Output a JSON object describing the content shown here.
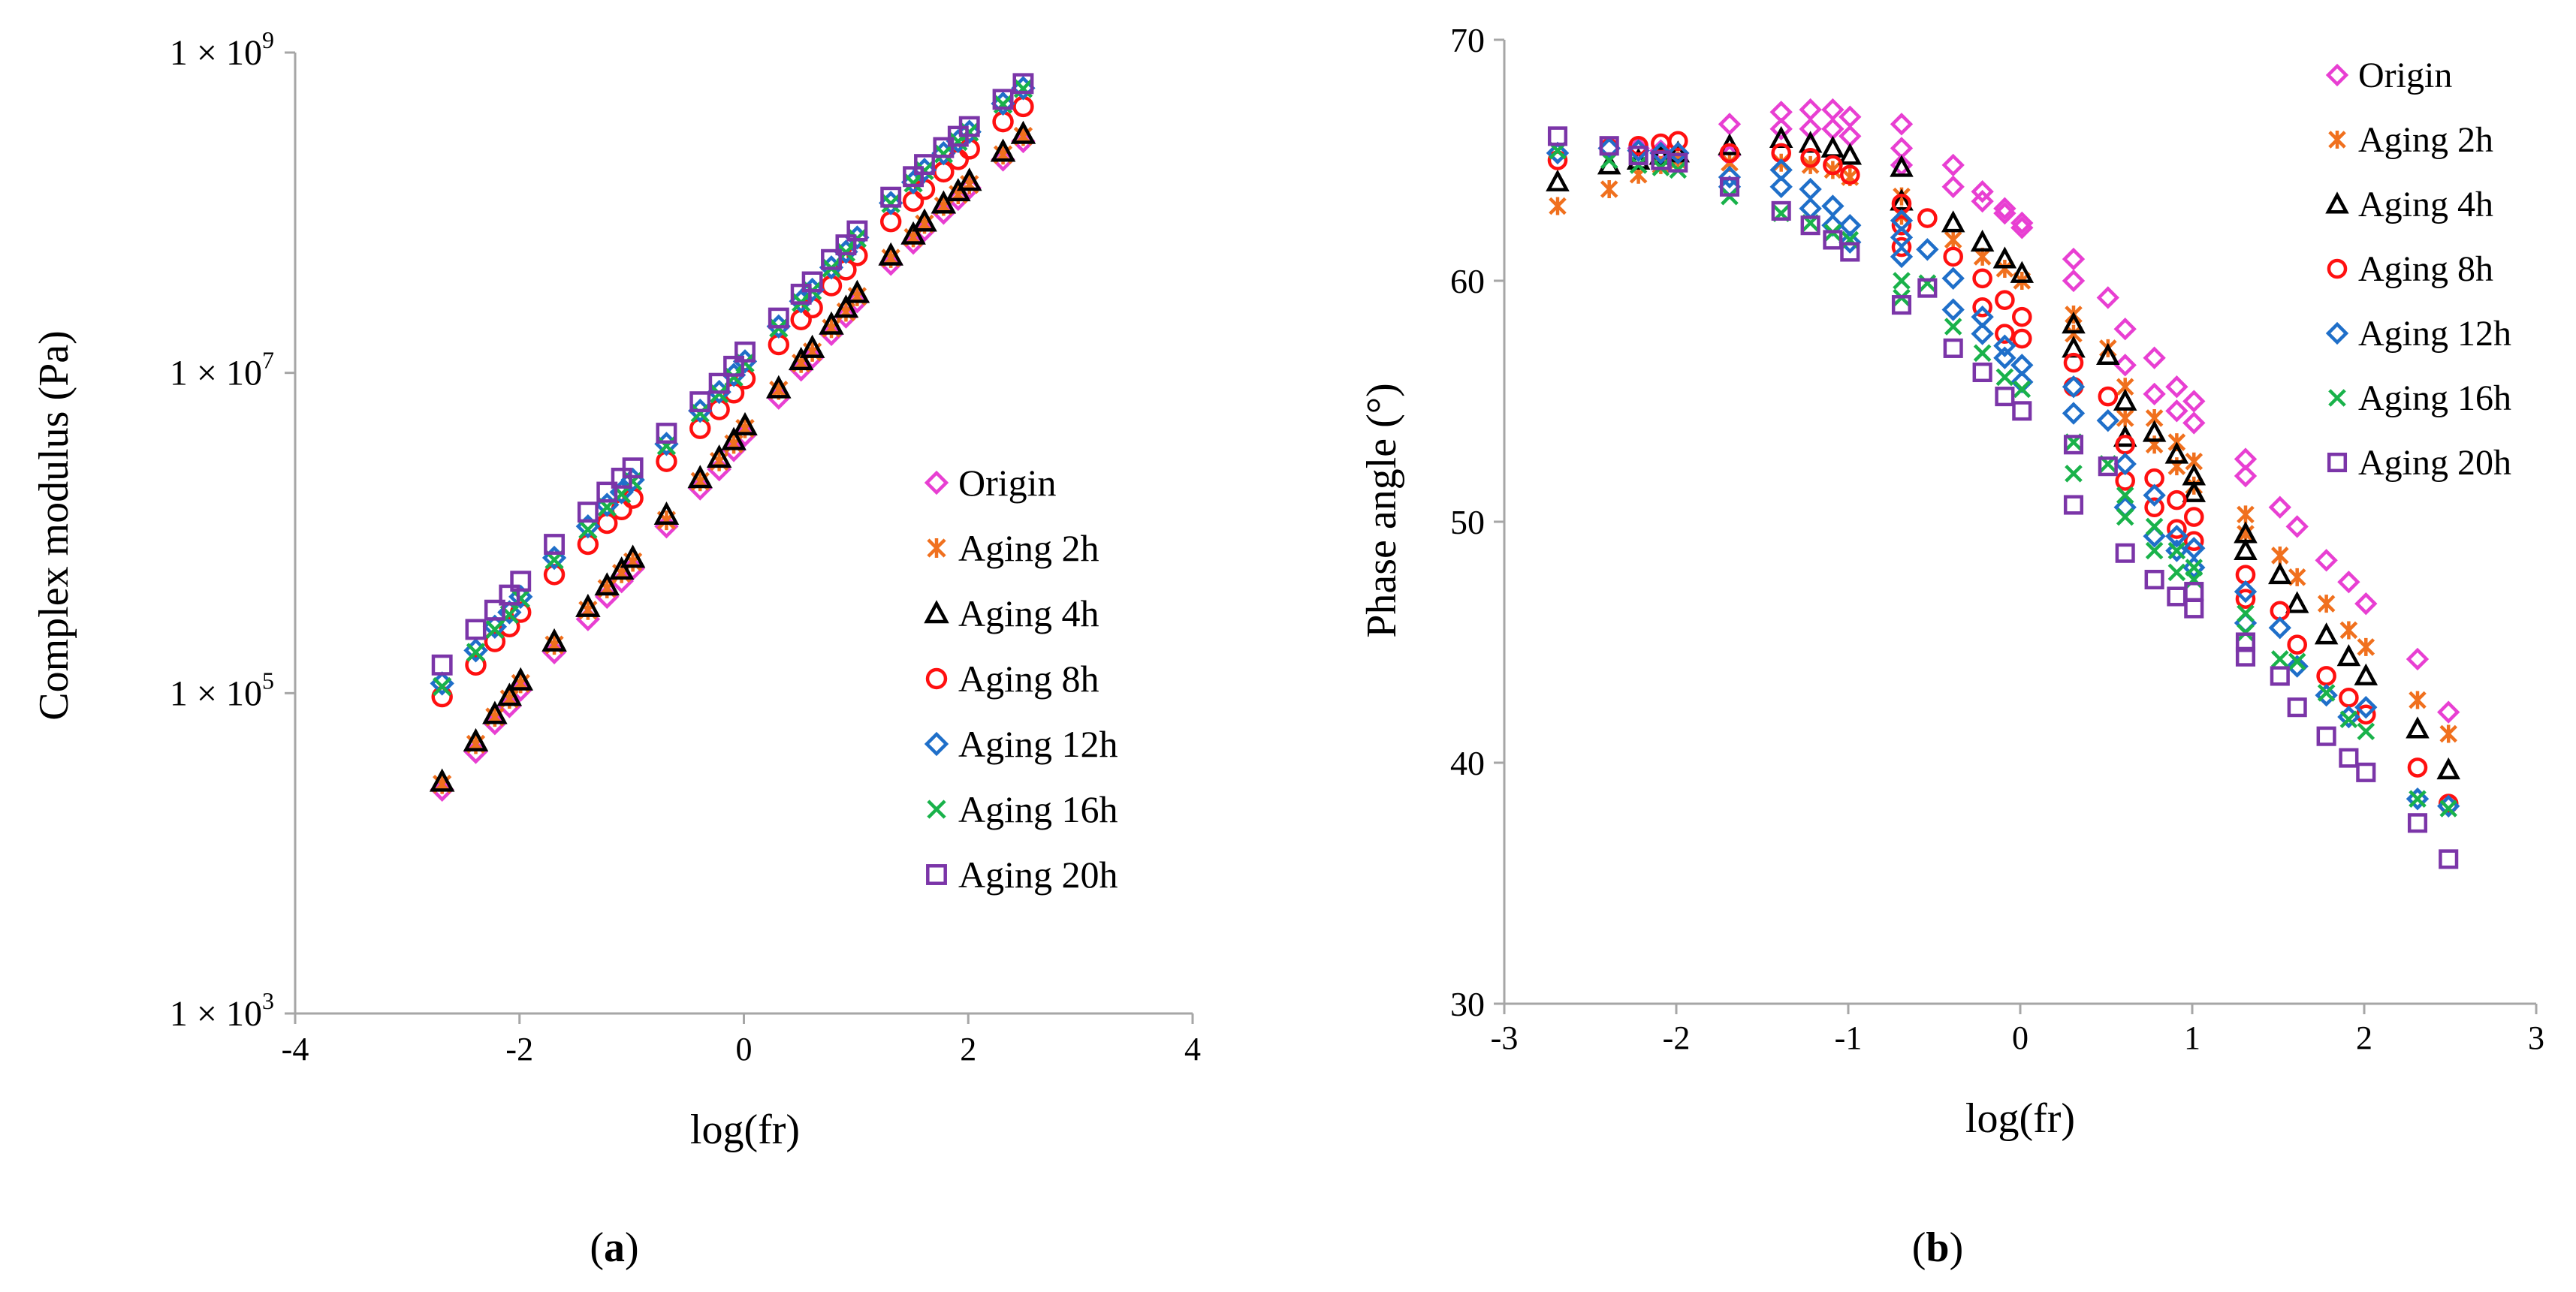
{
  "colors": {
    "Origin": "#e83fd2",
    "Aging 2h": "#f0701e",
    "Aging 4h": "#000000",
    "Aging 8h": "#ff1010",
    "Aging 12h": "#1f6fc9",
    "Aging 16h": "#19b24a",
    "Aging 20h": "#7b35a8"
  },
  "markers": {
    "Origin": "diamond",
    "Aging 2h": "asterisk",
    "Aging 4h": "triangle",
    "Aging 8h": "circle",
    "Aging 12h": "diamond",
    "Aging 16h": "x",
    "Aging 20h": "square"
  },
  "captions": {
    "a": "a",
    "b": "b"
  },
  "chart_data": [
    {
      "type": "scatter",
      "panel": "a",
      "xlabel": "log(fr)",
      "ylabel": "Complex modulus (Pa)",
      "yscale": "log",
      "xlim": [
        -4,
        4
      ],
      "xticks": [
        "-4",
        "-2",
        "0",
        "2",
        "4"
      ],
      "ylim": [
        1000,
        1000000000
      ],
      "yticks": [
        {
          "value": 1000,
          "mantissa": "1 × 10",
          "exp": "3"
        },
        {
          "value": 100000,
          "mantissa": "1 × 10",
          "exp": "5"
        },
        {
          "value": 10000000,
          "mantissa": "1 × 10",
          "exp": "7"
        },
        {
          "value": 1000000000,
          "mantissa": "1 × 10",
          "exp": "9"
        }
      ],
      "legend": [
        "Origin",
        "Aging 2h",
        "Aging 4h",
        "Aging 8h",
        "Aging 12h",
        "Aging 16h",
        "Aging 20h"
      ],
      "legend_position": "right",
      "x": [
        -2.69,
        -2.39,
        -2.22,
        -2.09,
        -1.99,
        -1.69,
        -1.39,
        -1.22,
        -1.09,
        -0.99,
        -0.69,
        -0.39,
        -0.22,
        -0.09,
        0.01,
        0.31,
        0.51,
        0.61,
        0.78,
        0.91,
        1.01,
        1.31,
        1.51,
        1.61,
        1.78,
        1.91,
        2.01,
        2.31,
        2.49
      ],
      "series": [
        {
          "name": "Origin",
          "values": [
            25000,
            43000,
            65000,
            83000,
            105000,
            180000,
            290000,
            400000,
            500000,
            600000,
            1100000,
            1900000,
            2500000,
            3300000,
            4100000,
            7000000,
            10500000,
            12500000,
            17500000,
            22500000,
            28000000,
            48000000,
            65000000,
            78000000,
            100000000,
            122000000,
            143000000,
            215000000,
            280000000
          ]
        },
        {
          "name": "Aging 2h",
          "values": [
            27000,
            48000,
            71000,
            92000,
            115000,
            200000,
            330000,
            450000,
            560000,
            660000,
            1200000,
            2100000,
            2800000,
            3600000,
            4500000,
            7800000,
            11500000,
            13500000,
            19000000,
            24000000,
            30000000,
            52000000,
            70000000,
            85000000,
            110000000,
            130000000,
            150000000,
            230000000,
            300000000
          ]
        },
        {
          "name": "Aging 4h",
          "values": [
            28000,
            50000,
            74000,
            96000,
            120000,
            210000,
            345000,
            470000,
            590000,
            700000,
            1300000,
            2200000,
            2950000,
            3800000,
            4700000,
            8000000,
            12000000,
            14300000,
            20000000,
            25500000,
            31500000,
            54000000,
            73000000,
            88000000,
            114000000,
            136000000,
            158000000,
            240000000,
            310000000
          ]
        },
        {
          "name": "Aging 8h",
          "values": [
            95000,
            150000,
            210000,
            260000,
            320000,
            550000,
            850000,
            1150000,
            1400000,
            1650000,
            2800000,
            4500000,
            5900000,
            7500000,
            9200000,
            15000000,
            21500000,
            25500000,
            35000000,
            44000000,
            54000000,
            88000000,
            118000000,
            140000000,
            180000000,
            215000000,
            250000000,
            370000000,
            460000000
          ]
        },
        {
          "name": "Aging 12h",
          "values": [
            115000,
            185000,
            260000,
            320000,
            400000,
            700000,
            1100000,
            1500000,
            1800000,
            2150000,
            3600000,
            5800000,
            7600000,
            9700000,
            11800000,
            19500000,
            28000000,
            33000000,
            45500000,
            57000000,
            70000000,
            115000000,
            155000000,
            185000000,
            235000000,
            280000000,
            320000000,
            480000000,
            600000000
          ]
        },
        {
          "name": "Aging 16h",
          "values": [
            110000,
            180000,
            250000,
            310000,
            390000,
            680000,
            1050000,
            1450000,
            1750000,
            2100000,
            3500000,
            5600000,
            7400000,
            9400000,
            11500000,
            19000000,
            27500000,
            32500000,
            45000000,
            56500000,
            69000000,
            114000000,
            153000000,
            183000000,
            233000000,
            278000000,
            318000000,
            475000000,
            595000000
          ]
        },
        {
          "name": "Aging 20h",
          "values": [
            150000,
            250000,
            330000,
            410000,
            500000,
            850000,
            1350000,
            1800000,
            2200000,
            2550000,
            4200000,
            6600000,
            8600000,
            11000000,
            13500000,
            22000000,
            31000000,
            37000000,
            51000000,
            63000000,
            77000000,
            125000000,
            168000000,
            200000000,
            255000000,
            300000000,
            345000000,
            510000000,
            640000000
          ]
        }
      ]
    },
    {
      "type": "scatter",
      "panel": "b",
      "xlabel": "log(fr)",
      "ylabel": "Phase angle (°)",
      "xlim": [
        -3,
        3
      ],
      "xticks": [
        "-3",
        "-2",
        "-1",
        "0",
        "1",
        "2",
        "3"
      ],
      "ylim": [
        30,
        70
      ],
      "yticks": [
        "30",
        "40",
        "50",
        "60",
        "70"
      ],
      "legend": [
        "Origin",
        "Aging 2h",
        "Aging 4h",
        "Aging 8h",
        "Aging 12h",
        "Aging 16h",
        "Aging 20h"
      ],
      "legend_position": "top-right",
      "series": [
        {
          "name": "Origin",
          "x": [
            -2.69,
            -2.39,
            -2.22,
            -2.09,
            -1.99,
            -1.69,
            -1.69,
            -1.39,
            -1.39,
            -1.22,
            -1.22,
            -1.09,
            -1.09,
            -0.99,
            -0.99,
            -0.69,
            -0.69,
            -0.69,
            -0.39,
            -0.39,
            -0.22,
            -0.22,
            -0.09,
            -0.09,
            0.01,
            0.01,
            0.31,
            0.31,
            0.51,
            0.61,
            0.61,
            0.78,
            0.78,
            0.91,
            0.91,
            1.01,
            1.01,
            1.31,
            1.31,
            1.51,
            1.61,
            1.78,
            1.91,
            2.01,
            2.31,
            2.49
          ],
          "y": [
            65.3,
            65.5,
            65.5,
            65.4,
            65.3,
            66.5,
            65.2,
            67.0,
            66.3,
            67.1,
            66.3,
            67.1,
            66.3,
            66.8,
            66.0,
            66.5,
            65.5,
            64.8,
            64.8,
            63.9,
            63.7,
            63.3,
            63.0,
            62.8,
            62.4,
            62.2,
            60.9,
            60.0,
            59.3,
            58.0,
            56.5,
            56.8,
            55.3,
            55.6,
            54.6,
            55.0,
            54.1,
            52.6,
            51.9,
            50.6,
            49.8,
            48.4,
            47.5,
            46.6,
            44.3,
            42.1
          ]
        },
        {
          "name": "Aging 2h",
          "x": [
            -2.69,
            -2.39,
            -2.22,
            -2.09,
            -1.99,
            -1.69,
            -1.39,
            -1.22,
            -1.09,
            -0.99,
            -0.69,
            -0.69,
            -0.39,
            -0.22,
            -0.09,
            0.01,
            0.31,
            0.31,
            0.51,
            0.61,
            0.61,
            0.78,
            0.78,
            0.91,
            0.91,
            1.01,
            1.01,
            1.31,
            1.31,
            1.51,
            1.61,
            1.78,
            1.91,
            2.01,
            2.31,
            2.49
          ],
          "y": [
            63.1,
            63.8,
            64.4,
            64.8,
            65.0,
            64.9,
            64.9,
            64.8,
            64.6,
            64.3,
            63.5,
            62.7,
            61.7,
            61.0,
            60.5,
            60.0,
            58.6,
            57.8,
            57.2,
            55.6,
            54.3,
            54.3,
            53.2,
            53.3,
            52.3,
            52.5,
            51.5,
            50.3,
            49.5,
            48.6,
            47.7,
            46.6,
            45.5,
            44.8,
            42.6,
            41.2
          ]
        },
        {
          "name": "Aging 4h",
          "x": [
            -2.69,
            -2.39,
            -2.22,
            -2.09,
            -1.99,
            -1.69,
            -1.39,
            -1.22,
            -1.09,
            -0.99,
            -0.69,
            -0.69,
            -0.39,
            -0.22,
            -0.09,
            0.01,
            0.31,
            0.31,
            0.51,
            0.61,
            0.61,
            0.78,
            0.91,
            1.01,
            1.01,
            1.31,
            1.31,
            1.51,
            1.61,
            1.78,
            1.91,
            2.01,
            2.31,
            2.49
          ],
          "y": [
            64.1,
            64.8,
            65.0,
            65.2,
            65.3,
            65.6,
            65.9,
            65.7,
            65.5,
            65.2,
            64.7,
            63.3,
            62.4,
            61.6,
            60.9,
            60.3,
            58.2,
            57.2,
            56.9,
            55.0,
            53.5,
            53.7,
            52.8,
            51.9,
            51.2,
            49.5,
            48.8,
            47.8,
            46.6,
            45.3,
            44.4,
            43.6,
            41.4,
            39.7
          ]
        },
        {
          "name": "Aging 8h",
          "x": [
            -2.69,
            -2.39,
            -2.22,
            -2.09,
            -1.99,
            -1.69,
            -1.39,
            -1.22,
            -1.09,
            -0.99,
            -0.69,
            -0.69,
            -0.69,
            -0.54,
            -0.39,
            -0.22,
            -0.22,
            -0.09,
            -0.09,
            0.01,
            0.01,
            0.31,
            0.31,
            0.51,
            0.61,
            0.61,
            0.78,
            0.78,
            0.91,
            0.91,
            1.01,
            1.01,
            1.31,
            1.31,
            1.51,
            1.61,
            1.78,
            1.91,
            2.01,
            2.31,
            2.49
          ],
          "y": [
            65.0,
            65.5,
            65.6,
            65.7,
            65.8,
            65.3,
            65.3,
            65.1,
            64.8,
            64.4,
            63.2,
            62.3,
            61.4,
            62.6,
            61.0,
            60.1,
            58.9,
            59.2,
            57.8,
            58.5,
            57.6,
            56.6,
            55.6,
            55.2,
            53.2,
            51.7,
            51.8,
            50.6,
            50.9,
            49.7,
            50.2,
            49.2,
            47.8,
            46.8,
            46.3,
            44.9,
            43.6,
            42.7,
            42.0,
            39.8,
            38.3
          ]
        },
        {
          "name": "Aging 12h",
          "x": [
            -2.69,
            -2.39,
            -2.22,
            -2.09,
            -1.99,
            -1.69,
            -1.69,
            -1.39,
            -1.39,
            -1.22,
            -1.22,
            -1.09,
            -1.09,
            -0.99,
            -0.99,
            -0.69,
            -0.69,
            -0.69,
            -0.54,
            -0.39,
            -0.39,
            -0.22,
            -0.22,
            -0.09,
            -0.09,
            0.01,
            0.01,
            0.31,
            0.31,
            0.51,
            0.61,
            0.61,
            0.78,
            0.78,
            0.91,
            0.91,
            1.01,
            1.01,
            1.31,
            1.31,
            1.51,
            1.61,
            1.78,
            1.91,
            2.01,
            2.31,
            2.49
          ],
          "y": [
            65.3,
            65.5,
            65.4,
            65.3,
            65.3,
            64.3,
            63.9,
            64.6,
            63.9,
            63.8,
            63.0,
            63.1,
            62.3,
            62.3,
            61.6,
            62.5,
            61.8,
            61.0,
            61.3,
            60.1,
            58.8,
            58.5,
            57.8,
            57.3,
            56.8,
            56.5,
            55.8,
            55.6,
            54.5,
            54.2,
            52.4,
            50.6,
            51.1,
            49.4,
            49.4,
            48.8,
            48.9,
            48.1,
            47.1,
            45.8,
            45.6,
            44.0,
            42.8,
            41.9,
            42.3,
            38.5,
            38.2
          ]
        },
        {
          "name": "Aging 16h",
          "x": [
            -2.69,
            -2.39,
            -2.22,
            -2.09,
            -1.99,
            -1.69,
            -1.39,
            -1.22,
            -1.09,
            -0.99,
            -0.69,
            -0.69,
            -0.54,
            -0.39,
            -0.22,
            -0.09,
            0.01,
            0.31,
            0.31,
            0.51,
            0.61,
            0.61,
            0.78,
            0.78,
            0.91,
            0.91,
            1.01,
            1.01,
            1.31,
            1.31,
            1.51,
            1.61,
            1.78,
            1.91,
            2.01,
            2.31,
            2.49
          ],
          "y": [
            65.4,
            65.0,
            64.8,
            64.7,
            64.6,
            63.5,
            62.8,
            62.4,
            62.0,
            61.7,
            60.0,
            59.3,
            59.9,
            58.1,
            57.0,
            56.0,
            55.5,
            53.3,
            52.0,
            52.4,
            51.1,
            50.2,
            49.8,
            48.8,
            48.8,
            47.9,
            48.1,
            47.6,
            46.2,
            45.4,
            44.3,
            44.2,
            42.9,
            41.8,
            41.3,
            38.5,
            38.1
          ]
        },
        {
          "name": "Aging 20h",
          "x": [
            -2.69,
            -2.39,
            -2.22,
            -2.09,
            -1.99,
            -1.69,
            -1.39,
            -1.22,
            -1.09,
            -0.99,
            -0.69,
            -0.54,
            -0.39,
            -0.22,
            -0.09,
            0.01,
            0.31,
            0.31,
            0.51,
            0.61,
            0.78,
            0.91,
            1.01,
            1.01,
            1.31,
            1.31,
            1.51,
            1.61,
            1.78,
            1.91,
            2.01,
            2.31,
            2.49
          ],
          "y": [
            66.0,
            65.6,
            65.2,
            65.0,
            64.9,
            63.9,
            62.9,
            62.3,
            61.7,
            61.2,
            59.0,
            59.7,
            57.2,
            56.2,
            55.2,
            54.6,
            53.2,
            50.7,
            52.3,
            48.7,
            47.6,
            46.9,
            47.1,
            46.4,
            45.0,
            44.4,
            43.6,
            42.3,
            41.1,
            40.2,
            39.6,
            37.5,
            36.0
          ]
        }
      ]
    }
  ]
}
